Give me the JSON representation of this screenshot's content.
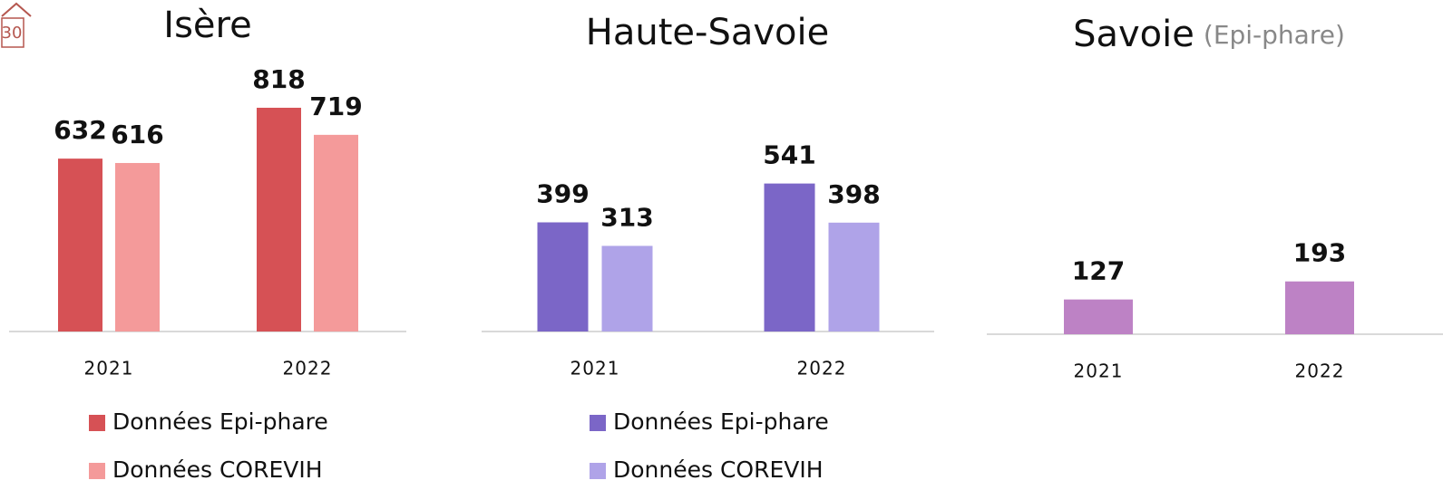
{
  "page_number": "30",
  "chart_data": [
    {
      "type": "bar",
      "title": "Isère",
      "categories": [
        "2021",
        "2022"
      ],
      "series": [
        {
          "name": "Données Epi-phare",
          "color": "#d65155",
          "values": [
            632,
            818
          ]
        },
        {
          "name": "Données COREVIH",
          "color": "#f49a9a",
          "values": [
            616,
            719
          ]
        }
      ]
    },
    {
      "type": "bar",
      "title": "Haute-Savoie",
      "categories": [
        "2021",
        "2022"
      ],
      "series": [
        {
          "name": "Données Epi-phare",
          "color": "#7b66c7",
          "values": [
            399,
            541
          ]
        },
        {
          "name": "Données COREVIH",
          "color": "#afa3e8",
          "values": [
            313,
            398
          ]
        }
      ]
    },
    {
      "type": "bar",
      "title": "Savoie",
      "subtitle": "(Epi-phare)",
      "categories": [
        "2021",
        "2022"
      ],
      "series": [
        {
          "color": "#bd82c5",
          "values": [
            127,
            193
          ]
        }
      ]
    }
  ]
}
